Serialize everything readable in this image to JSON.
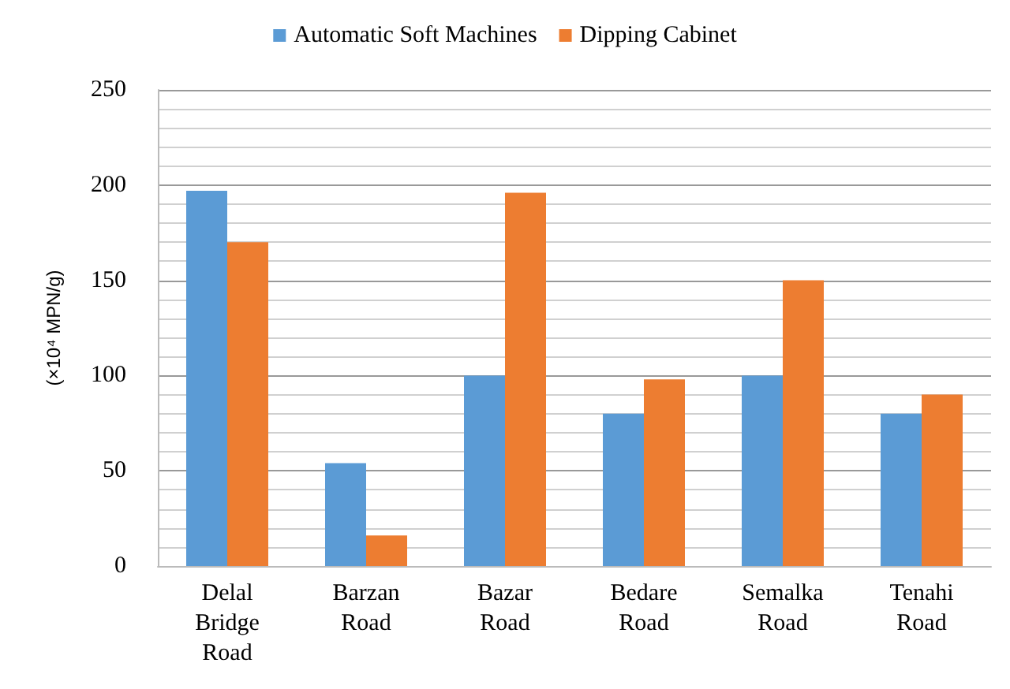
{
  "chart_data": {
    "type": "bar",
    "categories": [
      "Delal Bridge Road",
      "Barzan Road",
      "Bazar Road",
      "Bedare Road",
      "Semalka Road",
      "Tenahi Road"
    ],
    "series": [
      {
        "name": "Automatic Soft Machines",
        "color": "#5b9bd5",
        "values": [
          197,
          54,
          100,
          80,
          100,
          80
        ]
      },
      {
        "name": "Dipping Cabinet",
        "color": "#ed7d31",
        "values": [
          170,
          16,
          196,
          98,
          150,
          90
        ]
      }
    ],
    "ylabel": "(×10⁴ MPN/g)",
    "ylim": [
      0,
      250
    ],
    "yticks": [
      0,
      50,
      100,
      150,
      200,
      250
    ],
    "grid": "y",
    "legend": "top"
  }
}
